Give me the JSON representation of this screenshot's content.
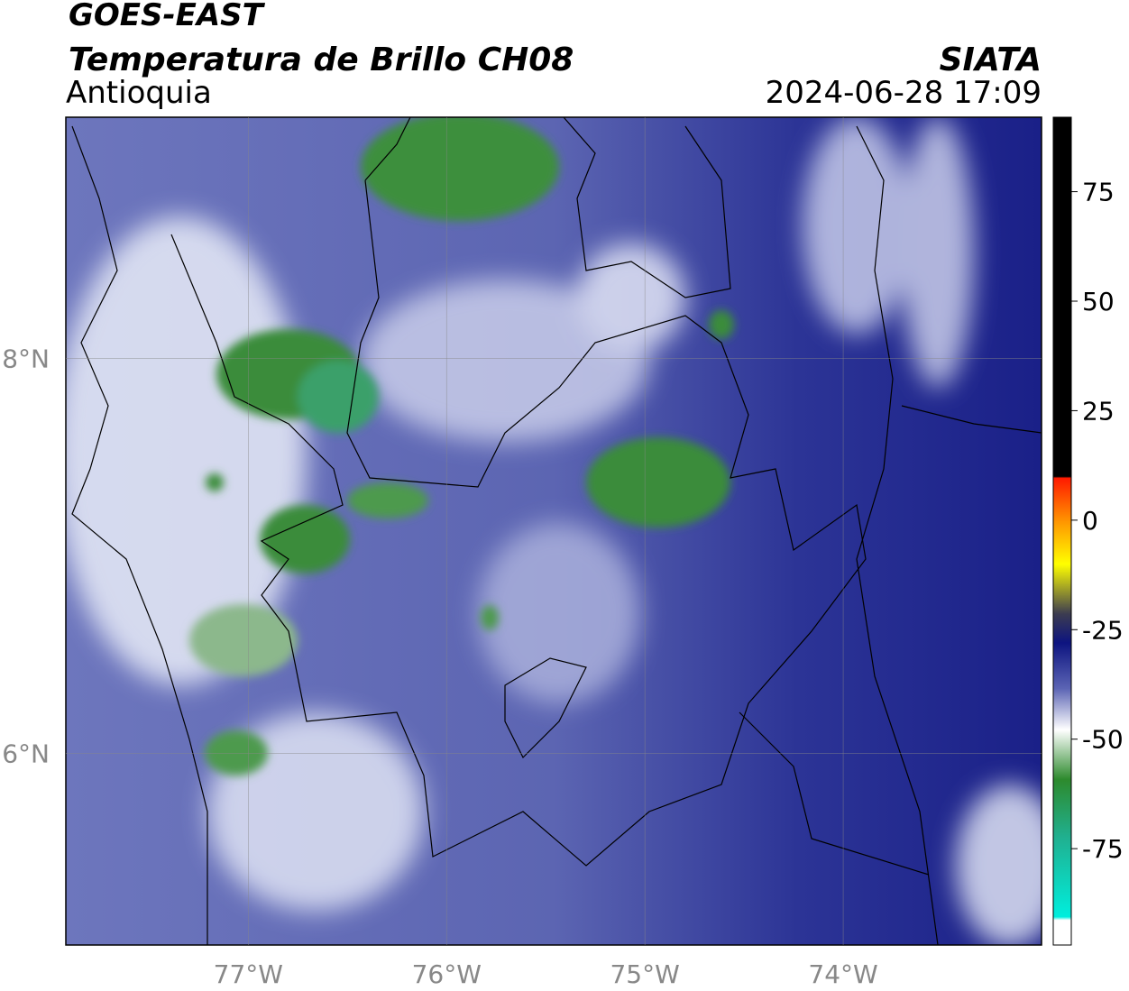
{
  "header": {
    "title": "GOES-EAST",
    "subtitle": "Temperatura de Brillo CH08",
    "region": "Antioquia",
    "source": "SIATA",
    "datetime": "2024-06-28 17:09"
  },
  "map": {
    "xlim": [
      -77.92,
      -73.0
    ],
    "ylim": [
      5.03,
      9.22
    ],
    "xticks": [
      {
        "value": -77,
        "label": "77°W"
      },
      {
        "value": -76,
        "label": "76°W"
      },
      {
        "value": -75,
        "label": "75°W"
      },
      {
        "value": -74,
        "label": "74°W"
      }
    ],
    "yticks": [
      {
        "value": 8,
        "label": "8°N"
      },
      {
        "value": 6,
        "label": "6°N"
      }
    ],
    "grid": true
  },
  "colorbar": {
    "lim": [
      -97,
      92
    ],
    "ticks": [
      75,
      50,
      25,
      0,
      -25,
      -50,
      -75
    ]
  }
}
